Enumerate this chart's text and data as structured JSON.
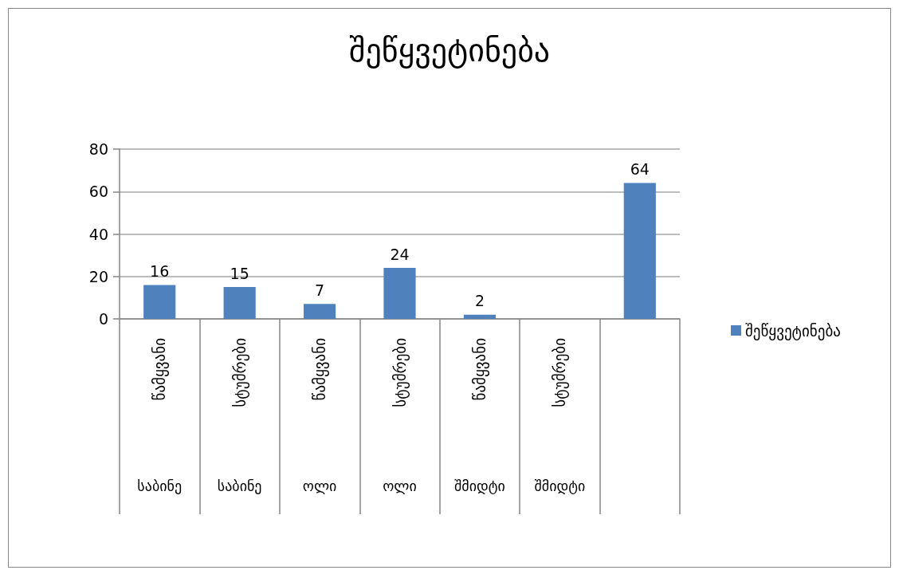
{
  "chart_data": {
    "type": "bar",
    "title": "შეწყვეტინება",
    "categories": [
      "წამყვანი\nსაბინე",
      "სტუმრები\nსაბინე",
      "წამყვანი\nოლი",
      "სტუმრები\nოლი",
      "წამყვანი\nშმიდტი",
      "სტუმრები\nშმიდტი",
      null
    ],
    "series": [
      {
        "name": "შეწყვეტინება",
        "color": "#4f81bd",
        "values": [
          16,
          15,
          7,
          24,
          2,
          null,
          64
        ]
      }
    ],
    "ylim": [
      0,
      80
    ],
    "yticks": [
      0,
      20,
      40,
      60,
      80
    ],
    "grid": "y",
    "legend": "right",
    "data_labels": true
  }
}
